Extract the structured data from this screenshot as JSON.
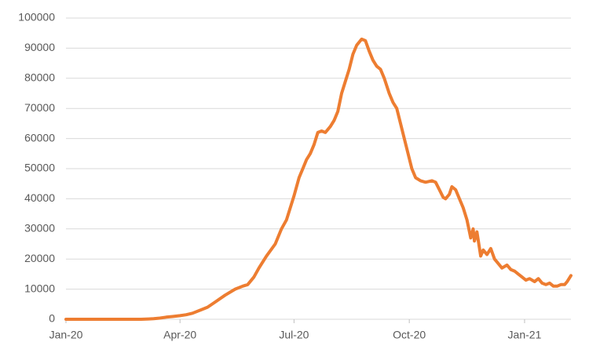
{
  "chart_data": {
    "type": "line",
    "x": [
      0,
      20,
      40,
      60,
      66,
      70,
      75,
      80,
      85,
      91,
      96,
      101,
      107,
      113,
      120,
      127,
      135,
      141,
      145,
      150,
      154,
      160,
      167,
      172,
      176,
      182,
      186,
      189,
      192,
      195,
      198,
      201,
      204,
      207,
      211,
      214,
      217,
      220,
      223,
      226,
      229,
      232,
      236,
      239,
      242,
      245,
      248,
      251,
      254,
      258,
      261,
      264,
      267,
      270,
      273,
      276,
      279,
      283,
      287,
      292,
      295,
      298,
      301,
      303,
      306,
      308,
      311,
      314,
      317,
      320,
      322,
      323,
      325,
      326,
      328,
      331,
      333,
      336,
      339,
      342,
      345,
      348,
      352,
      355,
      358,
      361,
      364,
      367,
      370,
      374,
      377,
      380,
      383,
      386,
      389,
      392,
      395,
      398,
      400,
      403
    ],
    "series": [
      {
        "color": "#ed7d31",
        "values": [
          0,
          0,
          0,
          0,
          100,
          200,
          400,
          700,
          900,
          1200,
          1500,
          2000,
          3000,
          4000,
          6000,
          8000,
          10000,
          11000,
          11500,
          14000,
          17000,
          21000,
          25000,
          30000,
          33000,
          41000,
          47000,
          50000,
          53000,
          55000,
          58000,
          62000,
          62500,
          62000,
          64000,
          66000,
          69000,
          75000,
          79000,
          83000,
          88000,
          91000,
          93000,
          92500,
          89000,
          86000,
          84000,
          83000,
          80000,
          75000,
          72000,
          70000,
          65000,
          60000,
          55000,
          50000,
          47000,
          46000,
          45500,
          46000,
          45500,
          43000,
          40500,
          40000,
          41500,
          44000,
          43000,
          40000,
          37000,
          33000,
          29000,
          27000,
          30000,
          26000,
          29000,
          21000,
          23000,
          21500,
          23500,
          20000,
          18500,
          17000,
          18000,
          16500,
          16000,
          15000,
          14000,
          13000,
          13500,
          12500,
          13500,
          12000,
          11500,
          12000,
          11000,
          11000,
          11500,
          11500,
          12500,
          14500
        ]
      }
    ],
    "xlim": [
      0,
      403
    ],
    "xticks": [
      {
        "value": 0,
        "label": "Jan-20"
      },
      {
        "value": 91,
        "label": "Apr-20"
      },
      {
        "value": 182,
        "label": "Jul-20"
      },
      {
        "value": 274,
        "label": "Oct-20"
      },
      {
        "value": 366,
        "label": "Jan-21"
      }
    ],
    "ylim": [
      0,
      100000
    ],
    "yticks": [
      0,
      10000,
      20000,
      30000,
      40000,
      50000,
      60000,
      70000,
      80000,
      90000,
      100000
    ],
    "grid": true
  }
}
